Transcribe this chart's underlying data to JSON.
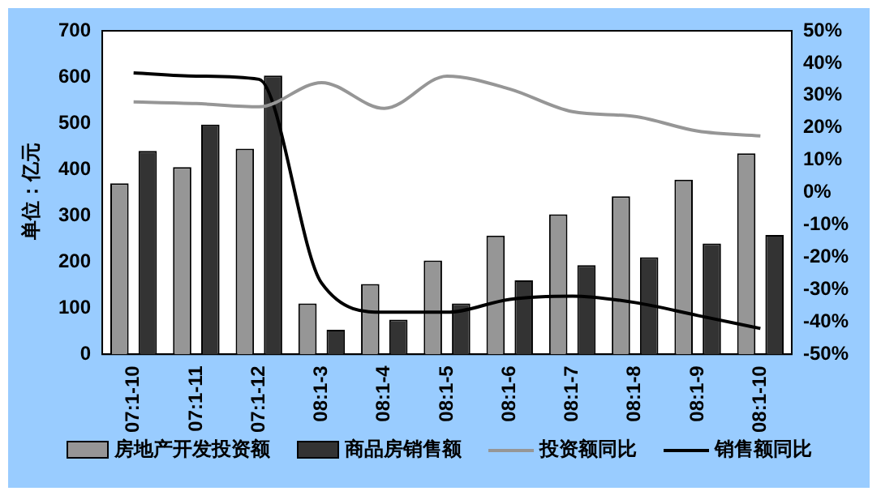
{
  "chart_data": {
    "type": "bar",
    "ylabel": "单位：亿元",
    "categories": [
      "07:1-10",
      "07:1-11",
      "07:1-12",
      "08:1-3",
      "08:1-4",
      "08:1-5",
      "08:1-6",
      "08:1-7",
      "08:1-8",
      "08:1-9",
      "08:1-10"
    ],
    "series": [
      {
        "name": "房地产开发投资额",
        "color": "#969696",
        "values": [
          370,
          405,
          445,
          110,
          152,
          203,
          257,
          303,
          342,
          378,
          435
        ]
      },
      {
        "name": "商品房销售额",
        "color": "#333333",
        "values": [
          440,
          497,
          603,
          53,
          75,
          110,
          160,
          193,
          210,
          240,
          258
        ]
      },
      {
        "name": "投资额同比",
        "type": "line",
        "axis": "y2",
        "color": "#969696",
        "values": [
          28,
          27.5,
          26.5,
          34,
          26,
          36,
          32,
          25,
          23.5,
          19,
          17.5
        ]
      },
      {
        "name": "销售额同比",
        "type": "line",
        "axis": "y2",
        "color": "#000000",
        "values": [
          37,
          36,
          35,
          -28,
          -37,
          -37,
          -33,
          -32,
          -34,
          -38,
          -42
        ]
      }
    ],
    "ylim": [
      0,
      700
    ],
    "yticks": [
      0,
      100,
      200,
      300,
      400,
      500,
      600,
      700
    ],
    "y2lim": [
      -50,
      50
    ],
    "y2ticks": [
      {
        "value": 50,
        "label": "50%"
      },
      {
        "value": 40,
        "label": "40%"
      },
      {
        "value": 30,
        "label": "30%"
      },
      {
        "value": 20,
        "label": "20%"
      },
      {
        "value": 10,
        "label": "10%"
      },
      {
        "value": 0,
        "label": "0%"
      },
      {
        "value": -10,
        "label": "-10%"
      },
      {
        "value": -20,
        "label": "-20%"
      },
      {
        "value": -30,
        "label": "-30%"
      },
      {
        "value": -40,
        "label": "-40%"
      },
      {
        "value": -50,
        "label": "-50%"
      }
    ],
    "grid": false,
    "legend": "bottom",
    "marker": "none"
  }
}
